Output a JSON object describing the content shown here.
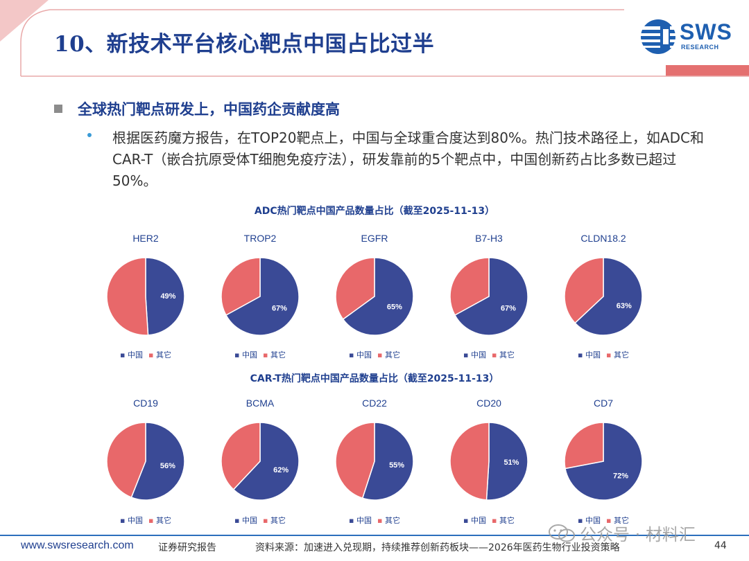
{
  "header": {
    "title": "10、新技术平台核心靶点中国占比过半",
    "logo_text": "SWS",
    "logo_sub": "RESEARCH"
  },
  "content": {
    "heading": "全球热门靶点研发上，中国药企贡献度高",
    "paragraph": "根据医药魔方报告，在TOP20靶点上，中国与全球重合度达到80%。热门技术路径上，如ADC和CAR-T（嵌合抗原受体T细胞免疫疗法），研发靠前的5个靶点中，中国创新药占比多数已超过50%。"
  },
  "colors": {
    "china": "#3a4a96",
    "other": "#e8686a",
    "title_blue": "#1f3f8f"
  },
  "chart_data": [
    {
      "type": "pie",
      "title": "ADC热门靶点中国产品数量占比（截至2025-11-13）",
      "legend": [
        "中国",
        "其它"
      ],
      "pies": [
        {
          "label": "HER2",
          "china": 49,
          "china_label": "49%"
        },
        {
          "label": "TROP2",
          "china": 67,
          "china_label": "67%"
        },
        {
          "label": "EGFR",
          "china": 65,
          "china_label": "65%"
        },
        {
          "label": "B7-H3",
          "china": 67,
          "china_label": "67%"
        },
        {
          "label": "CLDN18.2",
          "china": 63,
          "china_label": "63%"
        }
      ]
    },
    {
      "type": "pie",
      "title": "CAR-T热门靶点中国产品数量占比（截至2025-11-13）",
      "legend": [
        "中国",
        "其它"
      ],
      "pies": [
        {
          "label": "CD19",
          "china": 56,
          "china_label": "56%"
        },
        {
          "label": "BCMA",
          "china": 62,
          "china_label": "62%"
        },
        {
          "label": "CD22",
          "china": 55,
          "china_label": "55%"
        },
        {
          "label": "CD20",
          "china": 51,
          "china_label": "51%"
        },
        {
          "label": "CD7",
          "china": 72,
          "china_label": "72%"
        }
      ]
    }
  ],
  "footer": {
    "website": "www.swsresearch.com",
    "report_type": "证券研究报告",
    "source": "资料来源：加速进入兑现期，持续推荐创新药板块——2026年医药生物行业投资策略",
    "page": "44"
  },
  "watermark": {
    "text": "公众号 · 材料汇"
  }
}
